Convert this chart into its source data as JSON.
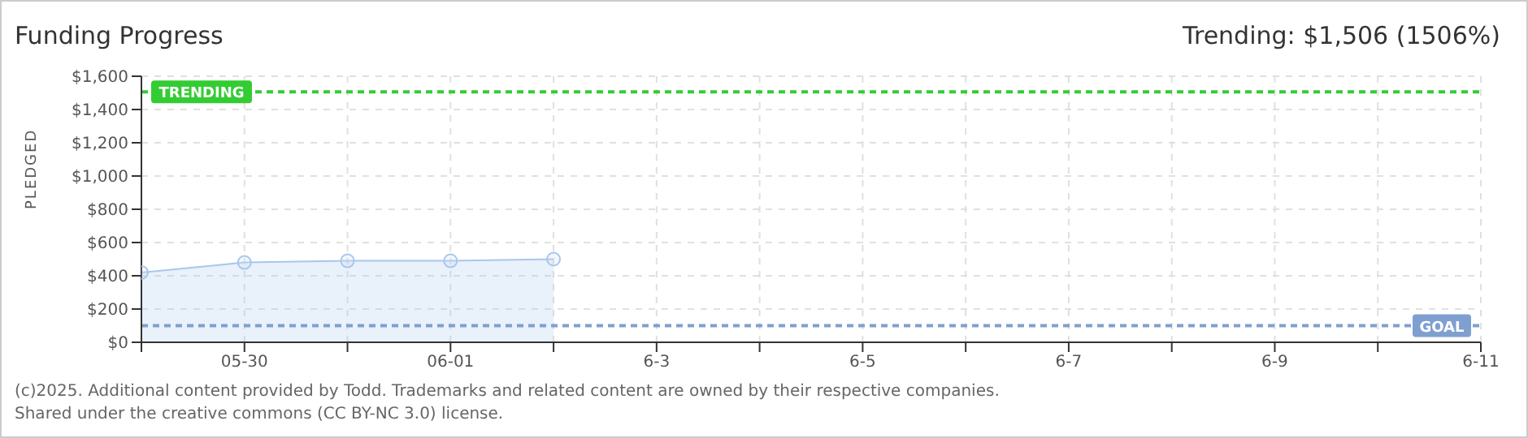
{
  "chart_data": {
    "type": "area",
    "title": "Funding Progress",
    "ylabel": "PLEDGED",
    "annotations": [
      "Trending: $1,506 (1506%)",
      "(c)2025. Additional content provided by Todd. Trademarks and related content are owned by their respective companies.",
      "Shared under the creative commons (CC BY-NC 3.0) license."
    ],
    "x": [
      "2025-05-29",
      "2025-05-30",
      "2025-05-31",
      "2025-06-01",
      "2025-06-02"
    ],
    "series": [
      {
        "color": "#a8c6ec",
        "values": [
          420,
          480,
          490,
          490,
          500
        ]
      }
    ],
    "xlim": [
      "2025-05-29",
      "2025-06-11"
    ],
    "xticks": [
      {
        "value": "2025-05-29",
        "label": null
      },
      {
        "value": "2025-05-30",
        "label": "05-30"
      },
      {
        "value": "2025-05-31",
        "label": null
      },
      {
        "value": "2025-06-01",
        "label": "06-01"
      },
      {
        "value": "2025-06-02",
        "label": null
      },
      {
        "value": "2025-06-03",
        "label": "6-3"
      },
      {
        "value": "2025-06-04",
        "label": null
      },
      {
        "value": "2025-06-05",
        "label": "6-5"
      },
      {
        "value": "2025-06-06",
        "label": null
      },
      {
        "value": "2025-06-07",
        "label": "6-7"
      },
      {
        "value": "2025-06-08",
        "label": null
      },
      {
        "value": "2025-06-09",
        "label": "6-9"
      },
      {
        "value": "2025-06-10",
        "label": null
      },
      {
        "value": "2025-06-11",
        "label": "6-11"
      }
    ],
    "ylim": [
      0,
      1600
    ],
    "yticks": [
      {
        "value": 0,
        "label": "$0"
      },
      {
        "value": 200,
        "label": "$200"
      },
      {
        "value": 400,
        "label": "$400"
      },
      {
        "value": 600,
        "label": "$600"
      },
      {
        "value": 800,
        "label": "$800"
      },
      {
        "value": 1000,
        "label": "$1,000"
      },
      {
        "value": 1200,
        "label": "$1,200"
      },
      {
        "value": 1400,
        "label": "$1,400"
      },
      {
        "value": 1600,
        "label": "$1,600"
      }
    ],
    "ref_lines": [
      {
        "axis": "y",
        "value": 1506,
        "label": "TRENDING",
        "color": "#33cc33",
        "line_style": "dashed"
      },
      {
        "axis": "y",
        "value": 100,
        "label": "GOAL",
        "color": "#7f9fd0",
        "line_style": "dashed"
      }
    ],
    "grid": true,
    "marker": "circle"
  }
}
